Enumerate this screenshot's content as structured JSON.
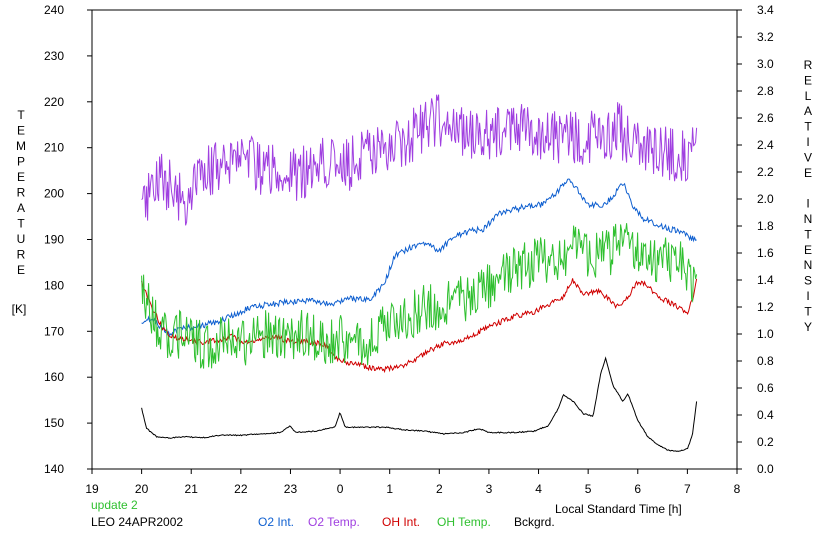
{
  "chart_data": {
    "type": "line",
    "left_axis": {
      "label_letters": [
        "T",
        "E",
        "M",
        "P",
        "E",
        "R",
        "A",
        "T",
        "U",
        "R",
        "E"
      ],
      "unit": "[K]",
      "ylim": [
        140,
        240
      ],
      "ticks": [
        "140",
        "150",
        "160",
        "170",
        "180",
        "190",
        "200",
        "210",
        "220",
        "230",
        "240"
      ]
    },
    "right_axis": {
      "label_letters": [
        "R",
        "E",
        "L",
        "A",
        "T",
        "I",
        "V",
        "E",
        "",
        "I",
        "N",
        "T",
        "E",
        "N",
        "S",
        "I",
        "T",
        "Y"
      ],
      "ylim": [
        0.0,
        3.4
      ],
      "ticks": [
        "0.0",
        "0.2",
        "0.4",
        "0.6",
        "0.8",
        "1.0",
        "1.2",
        "1.4",
        "1.6",
        "1.8",
        "2.0",
        "2.2",
        "2.4",
        "2.6",
        "2.8",
        "3.0",
        "3.2",
        "3.4"
      ]
    },
    "x_axis": {
      "label": "Local Standard Time [h]",
      "range_hours_since_19": [
        0,
        13
      ],
      "ticks": [
        "19",
        "20",
        "21",
        "22",
        "23",
        "0",
        "1",
        "2",
        "3",
        "4",
        "5",
        "6",
        "7",
        "8"
      ]
    },
    "series": [
      {
        "name": "O2 Temp.",
        "axis": "left",
        "color": "#a040e0",
        "noise": 6.0,
        "points": [
          [
            20.0,
            196
          ],
          [
            20.3,
            203
          ],
          [
            20.6,
            202
          ],
          [
            20.9,
            198
          ],
          [
            21.3,
            205
          ],
          [
            21.7,
            207
          ],
          [
            22.0,
            210
          ],
          [
            22.4,
            205
          ],
          [
            22.8,
            205
          ],
          [
            23.2,
            204
          ],
          [
            23.6,
            208
          ],
          [
            0.0,
            205
          ],
          [
            0.4,
            208
          ],
          [
            0.8,
            209
          ],
          [
            1.2,
            210
          ],
          [
            1.6,
            214
          ],
          [
            2.0,
            216
          ],
          [
            2.4,
            214
          ],
          [
            2.8,
            212
          ],
          [
            3.2,
            213
          ],
          [
            3.6,
            214
          ],
          [
            4.0,
            213
          ],
          [
            4.4,
            212
          ],
          [
            4.8,
            212
          ],
          [
            5.2,
            213
          ],
          [
            5.6,
            214
          ],
          [
            5.9,
            211
          ],
          [
            6.2,
            210
          ],
          [
            6.5,
            209
          ],
          [
            6.8,
            208
          ],
          [
            7.1,
            209
          ],
          [
            7.2,
            210
          ]
        ]
      },
      {
        "name": "O2 Int.",
        "axis": "right",
        "color": "#1060d0",
        "noise": 0.022,
        "points": [
          [
            20.0,
            1.07
          ],
          [
            20.2,
            1.12
          ],
          [
            20.4,
            1.05
          ],
          [
            20.6,
            1.0
          ],
          [
            20.8,
            1.05
          ],
          [
            21.0,
            1.05
          ],
          [
            21.3,
            1.07
          ],
          [
            21.6,
            1.1
          ],
          [
            21.9,
            1.15
          ],
          [
            22.2,
            1.2
          ],
          [
            22.6,
            1.22
          ],
          [
            23.0,
            1.24
          ],
          [
            23.4,
            1.25
          ],
          [
            23.8,
            1.22
          ],
          [
            0.2,
            1.26
          ],
          [
            0.6,
            1.25
          ],
          [
            0.9,
            1.38
          ],
          [
            1.1,
            1.58
          ],
          [
            1.4,
            1.64
          ],
          [
            1.7,
            1.68
          ],
          [
            2.0,
            1.62
          ],
          [
            2.3,
            1.72
          ],
          [
            2.6,
            1.76
          ],
          [
            2.9,
            1.78
          ],
          [
            3.2,
            1.9
          ],
          [
            3.5,
            1.92
          ],
          [
            3.8,
            1.95
          ],
          [
            4.1,
            1.96
          ],
          [
            4.4,
            2.06
          ],
          [
            4.6,
            2.16
          ],
          [
            4.8,
            2.06
          ],
          [
            5.0,
            1.95
          ],
          [
            5.3,
            1.96
          ],
          [
            5.5,
            2.02
          ],
          [
            5.7,
            2.12
          ],
          [
            5.9,
            1.95
          ],
          [
            6.1,
            1.86
          ],
          [
            6.3,
            1.82
          ],
          [
            6.6,
            1.78
          ],
          [
            6.9,
            1.76
          ],
          [
            7.2,
            1.68
          ]
        ]
      },
      {
        "name": "OH Int.",
        "axis": "right",
        "color": "#d00000",
        "noise": 0.02,
        "points": [
          [
            20.0,
            1.38
          ],
          [
            20.2,
            1.2
          ],
          [
            20.4,
            1.06
          ],
          [
            20.6,
            0.98
          ],
          [
            20.9,
            0.96
          ],
          [
            21.2,
            0.94
          ],
          [
            21.5,
            0.95
          ],
          [
            21.8,
            0.98
          ],
          [
            22.1,
            0.94
          ],
          [
            22.4,
            0.96
          ],
          [
            22.7,
            0.98
          ],
          [
            23.0,
            0.94
          ],
          [
            23.3,
            0.95
          ],
          [
            23.7,
            0.92
          ],
          [
            0.0,
            0.8
          ],
          [
            0.3,
            0.78
          ],
          [
            0.6,
            0.75
          ],
          [
            0.9,
            0.74
          ],
          [
            1.2,
            0.76
          ],
          [
            1.5,
            0.8
          ],
          [
            1.8,
            0.88
          ],
          [
            2.1,
            0.93
          ],
          [
            2.4,
            0.95
          ],
          [
            2.7,
            1.0
          ],
          [
            3.0,
            1.05
          ],
          [
            3.3,
            1.1
          ],
          [
            3.6,
            1.14
          ],
          [
            3.9,
            1.16
          ],
          [
            4.2,
            1.22
          ],
          [
            4.5,
            1.28
          ],
          [
            4.7,
            1.4
          ],
          [
            4.9,
            1.3
          ],
          [
            5.2,
            1.32
          ],
          [
            5.4,
            1.26
          ],
          [
            5.6,
            1.2
          ],
          [
            5.8,
            1.28
          ],
          [
            6.0,
            1.38
          ],
          [
            6.2,
            1.36
          ],
          [
            6.4,
            1.28
          ],
          [
            6.6,
            1.24
          ],
          [
            6.8,
            1.2
          ],
          [
            7.0,
            1.16
          ],
          [
            7.1,
            1.26
          ],
          [
            7.2,
            1.42
          ]
        ]
      },
      {
        "name": "OH Temp.",
        "axis": "left",
        "color": "#30c030",
        "noise": 5.5,
        "points": [
          [
            20.0,
            178
          ],
          [
            20.3,
            172
          ],
          [
            20.6,
            168
          ],
          [
            20.9,
            170
          ],
          [
            21.2,
            167
          ],
          [
            21.5,
            167
          ],
          [
            21.8,
            169
          ],
          [
            22.1,
            168
          ],
          [
            22.4,
            170
          ],
          [
            22.7,
            169
          ],
          [
            23.0,
            168
          ],
          [
            23.3,
            170
          ],
          [
            23.7,
            168
          ],
          [
            0.0,
            169
          ],
          [
            0.3,
            167
          ],
          [
            0.6,
            168
          ],
          [
            0.9,
            171
          ],
          [
            1.2,
            172
          ],
          [
            1.5,
            174
          ],
          [
            1.8,
            175
          ],
          [
            2.1,
            176
          ],
          [
            2.4,
            177
          ],
          [
            2.7,
            178
          ],
          [
            3.0,
            180
          ],
          [
            3.3,
            182
          ],
          [
            3.6,
            184
          ],
          [
            3.9,
            185
          ],
          [
            4.2,
            186
          ],
          [
            4.5,
            187
          ],
          [
            4.8,
            188
          ],
          [
            5.1,
            187
          ],
          [
            5.4,
            187
          ],
          [
            5.7,
            190
          ],
          [
            6.0,
            188
          ],
          [
            6.3,
            186
          ],
          [
            6.6,
            185
          ],
          [
            6.9,
            184
          ],
          [
            7.2,
            180
          ]
        ]
      },
      {
        "name": "Bckgrd.",
        "axis": "right",
        "color": "#000000",
        "noise": 0.004,
        "points": [
          [
            20.0,
            0.45
          ],
          [
            20.1,
            0.3
          ],
          [
            20.3,
            0.24
          ],
          [
            20.6,
            0.23
          ],
          [
            20.9,
            0.24
          ],
          [
            21.2,
            0.23
          ],
          [
            21.6,
            0.25
          ],
          [
            22.0,
            0.25
          ],
          [
            22.4,
            0.26
          ],
          [
            22.8,
            0.27
          ],
          [
            23.0,
            0.32
          ],
          [
            23.1,
            0.27
          ],
          [
            23.5,
            0.28
          ],
          [
            23.9,
            0.31
          ],
          [
            0.0,
            0.42
          ],
          [
            0.1,
            0.31
          ],
          [
            0.5,
            0.31
          ],
          [
            0.9,
            0.31
          ],
          [
            1.3,
            0.29
          ],
          [
            1.7,
            0.28
          ],
          [
            2.1,
            0.26
          ],
          [
            2.5,
            0.27
          ],
          [
            2.8,
            0.3
          ],
          [
            3.0,
            0.27
          ],
          [
            3.5,
            0.27
          ],
          [
            3.9,
            0.28
          ],
          [
            4.2,
            0.32
          ],
          [
            4.4,
            0.45
          ],
          [
            4.5,
            0.55
          ],
          [
            4.7,
            0.5
          ],
          [
            4.9,
            0.41
          ],
          [
            5.1,
            0.39
          ],
          [
            5.25,
            0.7
          ],
          [
            5.35,
            0.82
          ],
          [
            5.5,
            0.62
          ],
          [
            5.7,
            0.5
          ],
          [
            5.8,
            0.56
          ],
          [
            5.9,
            0.46
          ],
          [
            6.0,
            0.36
          ],
          [
            6.2,
            0.24
          ],
          [
            6.4,
            0.18
          ],
          [
            6.6,
            0.14
          ],
          [
            6.8,
            0.13
          ],
          [
            7.0,
            0.15
          ],
          [
            7.1,
            0.25
          ],
          [
            7.2,
            0.54
          ]
        ]
      }
    ],
    "legend": [
      "O2 Int.",
      "O2 Temp.",
      "OH Int.",
      "OH Temp.",
      "Bckgrd."
    ],
    "annotations": {
      "update": "update 2",
      "station": "LEO 24APR2002"
    },
    "grid": false,
    "legend_placement": "bottom"
  }
}
